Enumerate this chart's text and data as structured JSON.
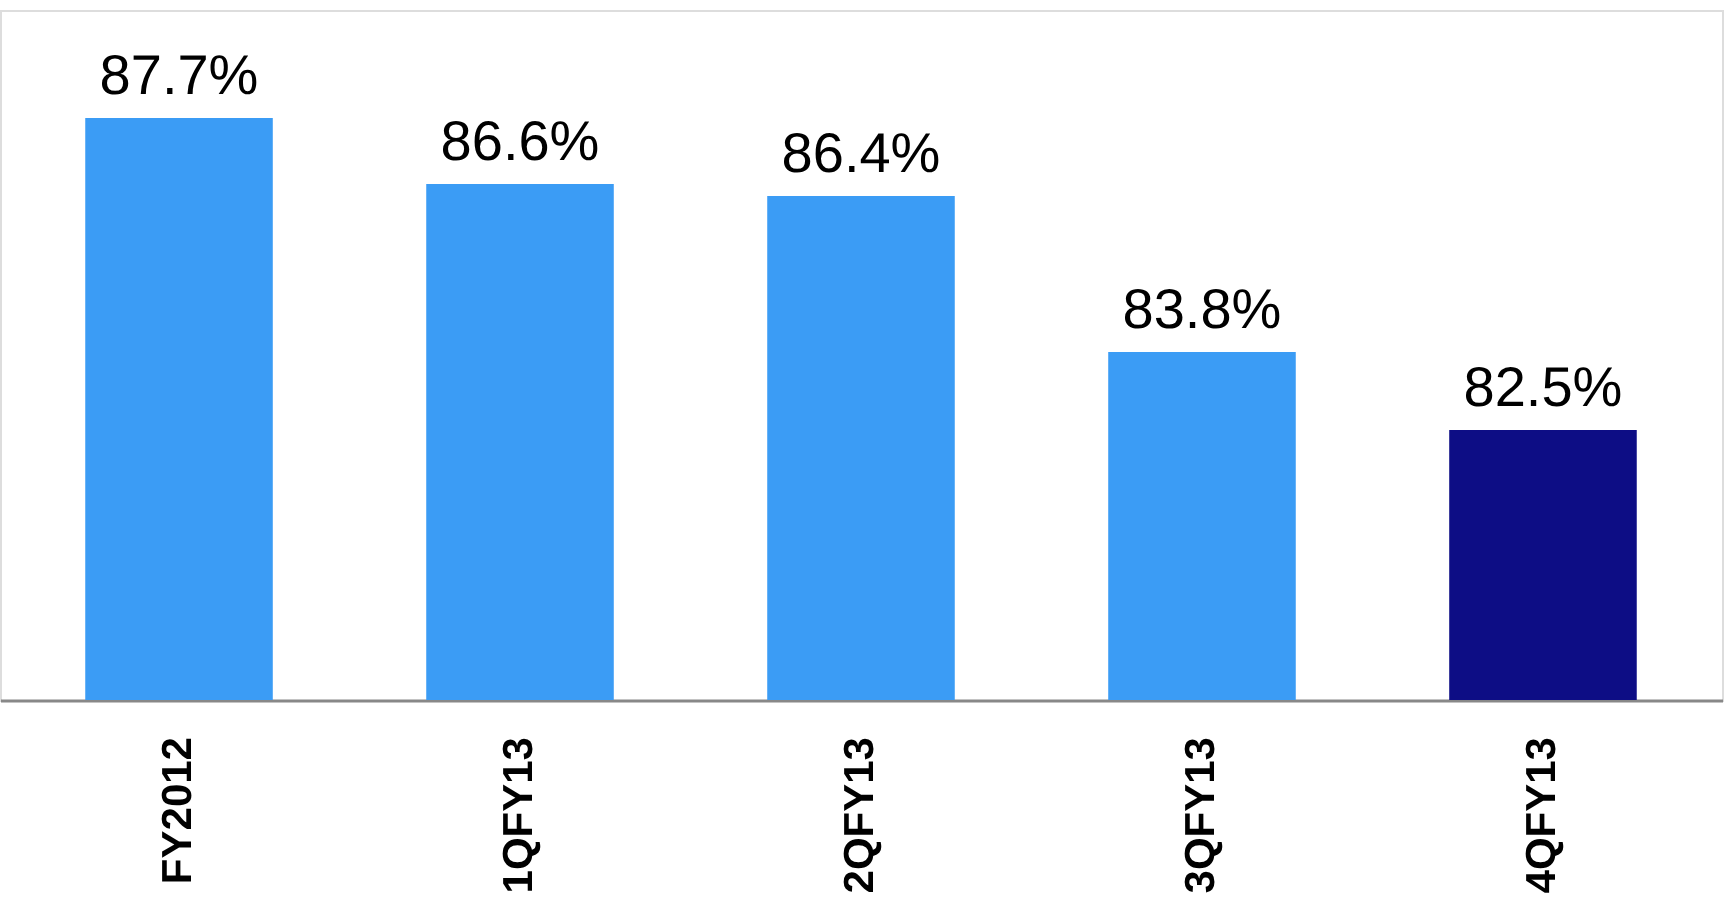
{
  "chart_data": {
    "type": "bar",
    "categories": [
      "FY2012",
      "1QFY13",
      "2QFY13",
      "3QFY13",
      "4QFY13"
    ],
    "values": [
      87.7,
      86.6,
      86.4,
      83.8,
      82.5
    ],
    "value_labels": [
      "87.7%",
      "86.6%",
      "86.4%",
      "83.8%",
      "82.5%"
    ],
    "colors": [
      "#3b9cf5",
      "#3b9cf5",
      "#3b9cf5",
      "#3b9cf5",
      "#0d0d85"
    ],
    "ylim": [
      78,
      89.5
    ],
    "tick_labels": "x",
    "grid": false
  }
}
